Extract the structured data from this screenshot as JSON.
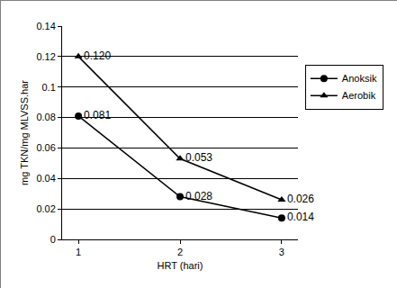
{
  "chart_data": {
    "type": "line",
    "x_label": "HRT (hari)",
    "y_label": "mg TKN/mg MLVSS.har",
    "categories": [
      "1",
      "2",
      "3"
    ],
    "series": [
      {
        "name": "Anoksik",
        "color": "#000000",
        "marker": "circle",
        "line_style": "solid",
        "values": [
          0.081,
          0.028,
          0.014
        ],
        "value_labels": [
          "0.081",
          "0.028",
          "0.014"
        ]
      },
      {
        "name": "Aerobik",
        "color": "#000000",
        "marker": "triangle-up",
        "line_style": "solid",
        "values": [
          0.12,
          0.053,
          0.026
        ],
        "value_labels": [
          "0.120",
          "0.053",
          "0.026"
        ]
      }
    ],
    "ylim": [
      0,
      0.14
    ],
    "yticks": [
      0,
      0.02,
      0.04,
      0.06,
      0.08,
      0.1,
      0.12,
      0.14
    ],
    "grid": true,
    "legend": "right",
    "data_labels": true
  }
}
